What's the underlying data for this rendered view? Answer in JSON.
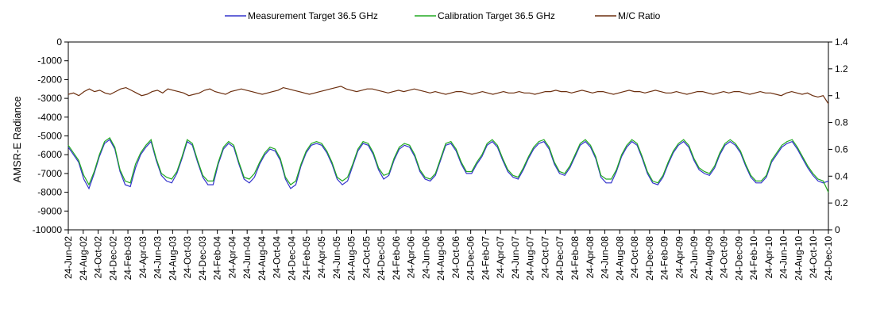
{
  "chart_data": {
    "type": "line",
    "title": "",
    "xlabel": "",
    "ylabel": "AMSR-E Radiance",
    "y2label": "",
    "ylim": [
      -10000,
      0
    ],
    "y2lim": [
      0,
      1.4
    ],
    "y_ticks": [
      0,
      -1000,
      -2000,
      -3000,
      -4000,
      -5000,
      -6000,
      -7000,
      -8000,
      -9000,
      -10000
    ],
    "y2_ticks": [
      1.4,
      1.2,
      1,
      0.8,
      0.6,
      0.4,
      0.2,
      0
    ],
    "grid": false,
    "legend_position": "top",
    "x_ticks": [
      "24-Jun-02",
      "24-Aug-02",
      "24-Oct-02",
      "24-Dec-02",
      "24-Feb-03",
      "24-Apr-03",
      "24-Jun-03",
      "24-Aug-03",
      "24-Oct-03",
      "24-Dec-03",
      "24-Feb-04",
      "24-Apr-04",
      "24-Jun-04",
      "24-Aug-04",
      "24-Oct-04",
      "24-Dec-04",
      "24-Feb-05",
      "24-Apr-05",
      "24-Jun-05",
      "24-Aug-05",
      "24-Oct-05",
      "24-Dec-05",
      "24-Feb-06",
      "24-Apr-06",
      "24-Jun-06",
      "24-Aug-06",
      "24-Oct-06",
      "24-Dec-06",
      "24-Feb-07",
      "24-Apr-07",
      "24-Jun-07",
      "24-Aug-07",
      "24-Oct-07",
      "24-Dec-07",
      "24-Feb-08",
      "24-Apr-08",
      "24-Jun-08",
      "24-Aug-08",
      "24-Oct-08",
      "24-Dec-08",
      "24-Feb-09",
      "24-Apr-09",
      "24-Jun-09",
      "24-Aug-09",
      "24-Oct-09",
      "24-Dec-09",
      "24-Feb-10",
      "24-Apr-10",
      "24-Jun-10",
      "24-Aug-10",
      "24-Oct-10",
      "24-Dec-10"
    ],
    "series": [
      {
        "name": "Measurement Target 36.5 GHz",
        "color": "#3333cc",
        "axis": "left",
        "values": [
          -5600,
          -6000,
          -6400,
          -7300,
          -7800,
          -7000,
          -6100,
          -5400,
          -5200,
          -5700,
          -6900,
          -7600,
          -7700,
          -6700,
          -6000,
          -5600,
          -5300,
          -6300,
          -7100,
          -7400,
          -7500,
          -7000,
          -6200,
          -5300,
          -5500,
          -6400,
          -7200,
          -7600,
          -7600,
          -6500,
          -5700,
          -5400,
          -5600,
          -6500,
          -7300,
          -7500,
          -7200,
          -6500,
          -6000,
          -5700,
          -5800,
          -6300,
          -7300,
          -7800,
          -7600,
          -6600,
          -5900,
          -5500,
          -5400,
          -5500,
          -5900,
          -6500,
          -7300,
          -7600,
          -7400,
          -6600,
          -5800,
          -5400,
          -5500,
          -6000,
          -6800,
          -7300,
          -7100,
          -6300,
          -5700,
          -5500,
          -5600,
          -6100,
          -6900,
          -7300,
          -7400,
          -7100,
          -6300,
          -5500,
          -5400,
          -5800,
          -6500,
          -7000,
          -7000,
          -6500,
          -6100,
          -5500,
          -5300,
          -5600,
          -6300,
          -6900,
          -7200,
          -7300,
          -6800,
          -6200,
          -5700,
          -5400,
          -5300,
          -5700,
          -6500,
          -7000,
          -7100,
          -6700,
          -6100,
          -5500,
          -5300,
          -5600,
          -6200,
          -7200,
          -7500,
          -7500,
          -6900,
          -6100,
          -5600,
          -5300,
          -5500,
          -6200,
          -7000,
          -7500,
          -7600,
          -7200,
          -6500,
          -5900,
          -5500,
          -5300,
          -5600,
          -6300,
          -6800,
          -7000,
          -7100,
          -6700,
          -6000,
          -5500,
          -5300,
          -5500,
          -5900,
          -6600,
          -7200,
          -7500,
          -7500,
          -7200,
          -6400,
          -6000,
          -5600,
          -5400,
          -5300,
          -5700,
          -6200,
          -6700,
          -7100,
          -7400,
          -7500,
          -7400
        ]
      },
      {
        "name": "Calibration Target 36.5 GHz",
        "color": "#22aa22",
        "axis": "left",
        "values": [
          -5500,
          -5900,
          -6300,
          -7100,
          -7600,
          -6900,
          -6000,
          -5300,
          -5100,
          -5600,
          -6800,
          -7400,
          -7500,
          -6500,
          -5900,
          -5500,
          -5200,
          -6200,
          -7000,
          -7200,
          -7300,
          -6900,
          -6100,
          -5200,
          -5400,
          -6300,
          -7100,
          -7400,
          -7400,
          -6400,
          -5600,
          -5300,
          -5500,
          -6400,
          -7200,
          -7300,
          -7000,
          -6400,
          -5900,
          -5600,
          -5700,
          -6200,
          -7200,
          -7600,
          -7400,
          -6500,
          -5800,
          -5400,
          -5300,
          -5400,
          -5800,
          -6400,
          -7200,
          -7400,
          -7200,
          -6500,
          -5700,
          -5300,
          -5400,
          -5900,
          -6700,
          -7100,
          -7000,
          -6200,
          -5600,
          -5400,
          -5500,
          -6000,
          -6800,
          -7200,
          -7300,
          -7000,
          -6200,
          -5400,
          -5300,
          -5700,
          -6400,
          -6900,
          -6900,
          -6400,
          -6000,
          -5400,
          -5200,
          -5500,
          -6200,
          -6800,
          -7100,
          -7200,
          -6700,
          -6100,
          -5600,
          -5300,
          -5200,
          -5600,
          -6400,
          -6900,
          -7000,
          -6600,
          -6000,
          -5400,
          -5200,
          -5500,
          -6100,
          -7100,
          -7300,
          -7300,
          -6800,
          -6000,
          -5500,
          -5200,
          -5400,
          -6100,
          -6900,
          -7400,
          -7500,
          -7100,
          -6400,
          -5800,
          -5400,
          -5200,
          -5500,
          -6200,
          -6700,
          -6900,
          -7000,
          -6600,
          -5900,
          -5400,
          -5200,
          -5400,
          -5800,
          -6500,
          -7100,
          -7400,
          -7400,
          -7100,
          -6300,
          -5900,
          -5500,
          -5300,
          -5200,
          -5600,
          -6100,
          -6600,
          -7000,
          -7300,
          -7400,
          -8000
        ]
      },
      {
        "name": "M/C Ratio",
        "color": "#6b2e0e",
        "axis": "right",
        "values": [
          1.01,
          1.02,
          1.0,
          1.03,
          1.05,
          1.03,
          1.04,
          1.02,
          1.01,
          1.03,
          1.05,
          1.06,
          1.04,
          1.02,
          1.0,
          1.01,
          1.03,
          1.04,
          1.02,
          1.05,
          1.04,
          1.03,
          1.02,
          1.0,
          1.01,
          1.02,
          1.04,
          1.05,
          1.03,
          1.02,
          1.01,
          1.03,
          1.04,
          1.05,
          1.04,
          1.03,
          1.02,
          1.01,
          1.02,
          1.03,
          1.04,
          1.06,
          1.05,
          1.04,
          1.03,
          1.02,
          1.01,
          1.02,
          1.03,
          1.04,
          1.05,
          1.06,
          1.07,
          1.05,
          1.04,
          1.03,
          1.04,
          1.05,
          1.05,
          1.04,
          1.03,
          1.02,
          1.03,
          1.04,
          1.03,
          1.04,
          1.05,
          1.04,
          1.03,
          1.02,
          1.03,
          1.02,
          1.01,
          1.02,
          1.03,
          1.03,
          1.02,
          1.01,
          1.02,
          1.03,
          1.02,
          1.01,
          1.02,
          1.03,
          1.02,
          1.02,
          1.03,
          1.02,
          1.02,
          1.01,
          1.02,
          1.03,
          1.03,
          1.04,
          1.03,
          1.03,
          1.02,
          1.03,
          1.04,
          1.03,
          1.02,
          1.03,
          1.03,
          1.02,
          1.01,
          1.02,
          1.03,
          1.04,
          1.03,
          1.03,
          1.02,
          1.03,
          1.04,
          1.03,
          1.02,
          1.02,
          1.03,
          1.02,
          1.01,
          1.02,
          1.03,
          1.03,
          1.02,
          1.01,
          1.02,
          1.03,
          1.02,
          1.03,
          1.03,
          1.02,
          1.01,
          1.02,
          1.03,
          1.02,
          1.02,
          1.01,
          1.0,
          1.02,
          1.03,
          1.02,
          1.01,
          1.02,
          1.0,
          0.99,
          1.0,
          0.94
        ]
      }
    ]
  }
}
